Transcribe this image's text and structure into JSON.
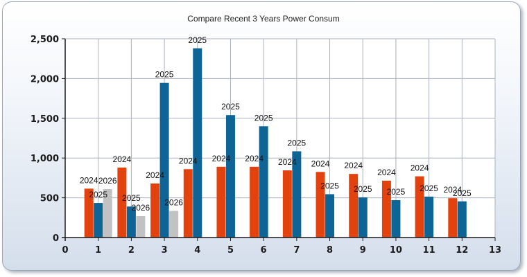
{
  "chart_data": {
    "type": "bar",
    "title": "Compare Recent 3 Years Power Consum",
    "xlabel": "",
    "ylabel": "",
    "xlim": [
      0,
      13
    ],
    "ylim": [
      0,
      2500
    ],
    "x_ticks": [
      0,
      1,
      2,
      3,
      4,
      5,
      6,
      7,
      8,
      9,
      10,
      11,
      12,
      13
    ],
    "y_ticks": [
      0,
      500,
      1000,
      1500,
      2000,
      2500
    ],
    "y_tick_labels": [
      "0",
      "500",
      "1,000",
      "1,500",
      "2,000",
      "2,500"
    ],
    "grid": true,
    "legend": "none",
    "series": [
      {
        "label_text": "2024",
        "color": "#e2420e",
        "x": [
          1,
          2,
          3,
          4,
          5,
          6,
          7,
          8,
          9,
          10,
          11,
          12
        ],
        "values": [
          615,
          880,
          680,
          860,
          890,
          890,
          845,
          825,
          800,
          715,
          770,
          495
        ]
      },
      {
        "label_text": "2025",
        "color": "#0d6495",
        "x": [
          1,
          2,
          3,
          4,
          5,
          6,
          7,
          8,
          9,
          10,
          11,
          12
        ],
        "values": [
          435,
          390,
          1945,
          2380,
          1540,
          1400,
          1085,
          545,
          505,
          470,
          515,
          455
        ]
      },
      {
        "label_text": "2026",
        "color": "#c2c2c2",
        "x": [
          1,
          2,
          3
        ],
        "values": [
          610,
          270,
          335
        ]
      }
    ]
  }
}
